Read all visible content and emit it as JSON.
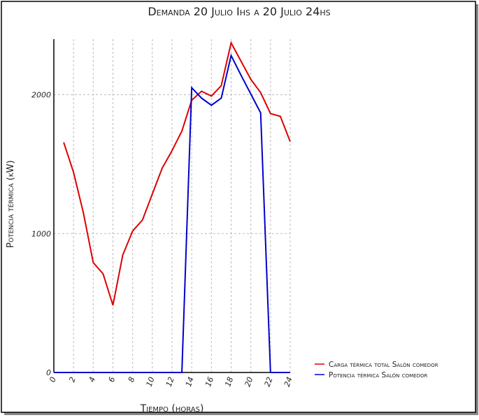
{
  "chart_data": {
    "type": "line",
    "title": "Demanda 20 Julio Ihs a 20 Julio 24hs",
    "x_label": "Tiempo (horas)",
    "y_label": "Potencia térmica (kW)",
    "x": [
      0,
      1,
      2,
      3,
      4,
      5,
      6,
      7,
      8,
      9,
      10,
      11,
      12,
      13,
      14,
      15,
      16,
      17,
      18,
      19,
      20,
      21,
      22,
      23,
      24
    ],
    "series": [
      {
        "name": "Carga térmica total Salón comedor",
        "color": "#dd0000",
        "values": [
          null,
          1657,
          1441,
          1149,
          791,
          710,
          484,
          846,
          1018,
          1098,
          1285,
          1471,
          1597,
          1738,
          1960,
          2025,
          1990,
          2065,
          2373,
          2242,
          2111,
          2015,
          1864,
          1844,
          1662
        ]
      },
      {
        "name": "Potencia térmica Salón comedor",
        "color": "#0000cc",
        "values": [
          0,
          0,
          0,
          0,
          0,
          0,
          0,
          0,
          0,
          0,
          0,
          0,
          0,
          0,
          2050,
          1975,
          1924,
          1975,
          2282,
          2141,
          2005,
          1869,
          0,
          0,
          0
        ]
      }
    ],
    "xlim": [
      0,
      24
    ],
    "ylim": [
      0,
      2400
    ],
    "xticks": [
      0,
      2,
      4,
      6,
      8,
      10,
      12,
      14,
      16,
      18,
      20,
      22,
      24
    ],
    "yticks": [
      0,
      1000,
      2000
    ],
    "grid": true,
    "legend": "lower right"
  }
}
